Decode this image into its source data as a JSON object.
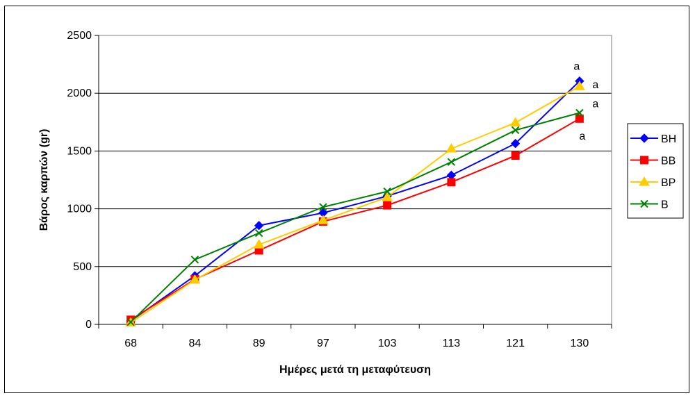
{
  "chart_data": {
    "type": "line",
    "title": "",
    "xlabel": "Ημέρες μετά τη μεταφύτευση",
    "ylabel": "Βάρος καρπών (gr)",
    "categories": [
      "68",
      "84",
      "89",
      "97",
      "103",
      "113",
      "121",
      "130"
    ],
    "ylim": [
      0,
      2500
    ],
    "yticks": [
      0,
      500,
      1000,
      1500,
      2000,
      2500
    ],
    "grid": true,
    "legend_position": "right",
    "series": [
      {
        "name": "BH",
        "color": "#0000ff",
        "marker": "diamond",
        "values": [
          30,
          420,
          855,
          965,
          1110,
          1290,
          1565,
          2105
        ]
      },
      {
        "name": "BB",
        "color": "#ff0000",
        "marker": "square",
        "values": [
          40,
          390,
          640,
          890,
          1030,
          1230,
          1460,
          1780
        ]
      },
      {
        "name": "BP",
        "color": "#ffcc00",
        "marker": "triangle",
        "values": [
          15,
          385,
          690,
          900,
          1100,
          1520,
          1745,
          2060
        ]
      },
      {
        "name": "B",
        "color": "#008000",
        "marker": "x",
        "values": [
          20,
          560,
          790,
          1015,
          1150,
          1405,
          1680,
          1830
        ]
      }
    ],
    "annotations": [
      {
        "text": "a",
        "series": "BH",
        "category": "130"
      },
      {
        "text": "a",
        "series": "BP",
        "category": "130"
      },
      {
        "text": "a",
        "series": "B",
        "category": "130"
      },
      {
        "text": "a",
        "series": "BB",
        "category": "130"
      }
    ]
  }
}
